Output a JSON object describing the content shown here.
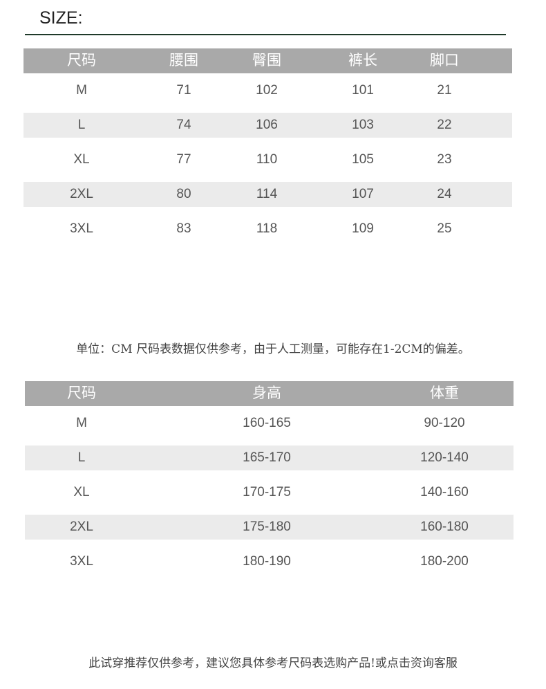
{
  "title": "SIZE:",
  "table1": {
    "headers": [
      "尺码",
      "腰围",
      "臀围",
      "裤长",
      "脚口"
    ],
    "rows": [
      [
        "M",
        "71",
        "102",
        "101",
        "21"
      ],
      [
        "L",
        "74",
        "106",
        "103",
        "22"
      ],
      [
        "XL",
        "77",
        "110",
        "105",
        "23"
      ],
      [
        "2XL",
        "80",
        "114",
        "107",
        "24"
      ],
      [
        "3XL",
        "83",
        "118",
        "109",
        "25"
      ]
    ]
  },
  "note1": "单位：CM 尺码表数据仅供参考，由于人工测量，可能存在1-2CM的偏差。",
  "table2": {
    "headers": [
      "尺码",
      "身高",
      "体重"
    ],
    "rows": [
      [
        "M",
        "160-165",
        "90-120"
      ],
      [
        "L",
        "165-170",
        "120-140"
      ],
      [
        "XL",
        "170-175",
        "140-160"
      ],
      [
        "2XL",
        "175-180",
        "160-180"
      ],
      [
        "3XL",
        "180-190",
        "180-200"
      ]
    ]
  },
  "note2": "此试穿推荐仅供参考，建议您具体参考尺码表选购产品!或点击资询客服",
  "colors": {
    "header_bg": "#a9a9a9",
    "stripe_bg": "#ebebeb",
    "rule": "#1f3a2a"
  }
}
